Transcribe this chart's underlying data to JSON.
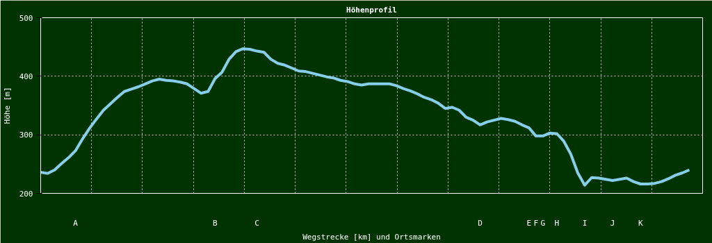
{
  "chart_data": {
    "type": "line",
    "title": "Höhenprofil",
    "xlabel": "Wegstrecke [km] und Ortsmarken",
    "ylabel": "Höhe [m]",
    "categories": [
      null,
      null,
      null,
      null,
      null,
      "A",
      null,
      null,
      null,
      null,
      null,
      null,
      null,
      null,
      null,
      null,
      null,
      null,
      null,
      null,
      null,
      null,
      null,
      null,
      null,
      "B",
      null,
      null,
      null,
      null,
      null,
      "C",
      null,
      null,
      null,
      null,
      null,
      null,
      null,
      null,
      null,
      null,
      null,
      null,
      null,
      null,
      null,
      null,
      null,
      null,
      null,
      null,
      null,
      null,
      null,
      null,
      null,
      null,
      null,
      null,
      null,
      null,
      null,
      "D",
      null,
      null,
      null,
      null,
      null,
      null,
      "E",
      "F",
      "G",
      null,
      "H",
      null,
      null,
      null,
      "I",
      null,
      null,
      null,
      "J",
      null,
      null,
      null,
      "K",
      null,
      null,
      null,
      null,
      null,
      null,
      null
    ],
    "color": "#87ceeb",
    "values": [
      236,
      234,
      240,
      251,
      261,
      273,
      293,
      311,
      327,
      342,
      353,
      364,
      374,
      378,
      382,
      387,
      392,
      395,
      393,
      392,
      390,
      387,
      379,
      371,
      374,
      396,
      407,
      429,
      442,
      447,
      446,
      443,
      441,
      429,
      422,
      419,
      414,
      409,
      408,
      405,
      402,
      399,
      397,
      393,
      391,
      387,
      385,
      387,
      387,
      387,
      387,
      384,
      379,
      375,
      370,
      364,
      360,
      354,
      345,
      347,
      342,
      330,
      325,
      317,
      322,
      325,
      328,
      326,
      323,
      317,
      312,
      298,
      298,
      303,
      302,
      289,
      267,
      235,
      214,
      227,
      226,
      224,
      222,
      224,
      226,
      220,
      216,
      216,
      217,
      220,
      225,
      231,
      235,
      240
    ],
    "ylim": [
      200,
      500
    ],
    "yticks": [
      200,
      300,
      400,
      500
    ],
    "grid": true
  }
}
